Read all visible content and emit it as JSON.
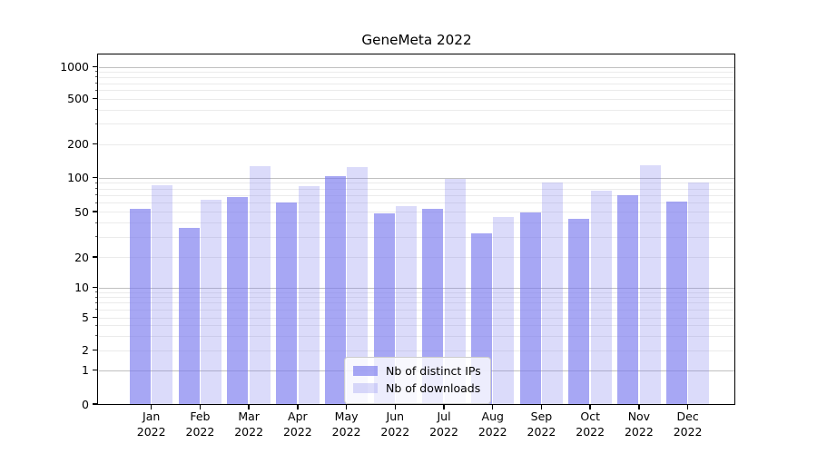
{
  "chart_data": {
    "type": "bar",
    "title": "GeneMeta 2022",
    "categories": [
      "Jan\n2022",
      "Feb\n2022",
      "Mar\n2022",
      "Apr\n2022",
      "May\n2022",
      "Jun\n2022",
      "Jul\n2022",
      "Aug\n2022",
      "Sep\n2022",
      "Oct\n2022",
      "Nov\n2022",
      "Dec\n2022"
    ],
    "series": [
      {
        "name": "Nb of distinct IPs",
        "color": "rgba(122,122,238,0.66)",
        "values": [
          53,
          36,
          67,
          60,
          103,
          48,
          53,
          32,
          49,
          43,
          70,
          61
        ]
      },
      {
        "name": "Nb of downloads",
        "color": "rgba(122,122,238,0.27)",
        "values": [
          86,
          63,
          126,
          84,
          124,
          56,
          98,
          45,
          90,
          76,
          128,
          90
        ]
      }
    ],
    "xlabel": "",
    "ylabel": "",
    "yscale": "symlog",
    "ylim": [
      0,
      1300
    ],
    "yticks": [
      0,
      1,
      2,
      5,
      10,
      20,
      50,
      100,
      200,
      500,
      1000
    ],
    "grid": {
      "orientation": "horizontal",
      "major_values": [
        1,
        10,
        100,
        1000
      ],
      "minor_values": [
        2,
        3,
        4,
        5,
        6,
        7,
        8,
        9,
        20,
        30,
        40,
        50,
        60,
        70,
        80,
        90,
        200,
        300,
        400,
        500,
        600,
        700,
        800,
        900
      ]
    },
    "legend_position": "lower center inside plot",
    "colors": {
      "major_grid": "#c0c0c0",
      "minor_grid": "#ebebeb",
      "axis": "#000000",
      "background": "#ffffff"
    }
  }
}
